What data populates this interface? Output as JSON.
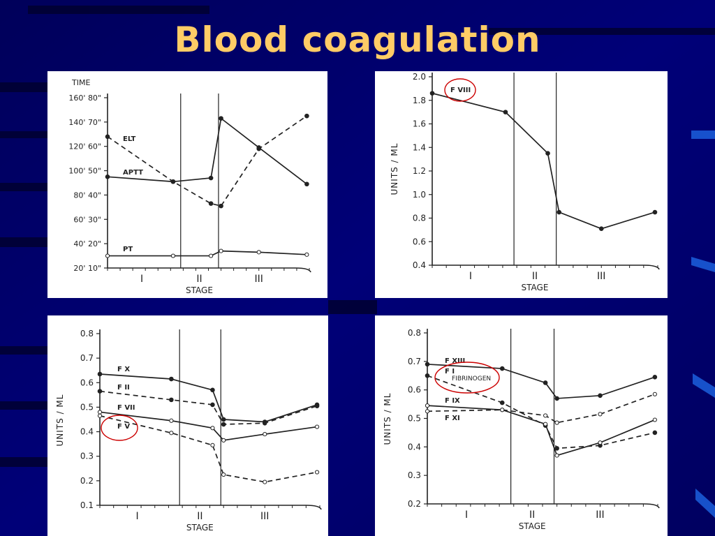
{
  "slide": {
    "title": "Blood coagulation"
  },
  "colors": {
    "background": "#000066",
    "title": "#ffcc66",
    "highlight": "#cc0000",
    "ink": "#222222"
  },
  "chart_data": [
    {
      "type": "line",
      "ylabel": "TIME",
      "xlabel": "STAGE",
      "stages": [
        "I",
        "II",
        "III"
      ],
      "ylim": [
        20,
        160
      ],
      "yticks": [
        20,
        40,
        60,
        80,
        100,
        120,
        140,
        160
      ],
      "ytick_labels": [
        "20' 10\"",
        "40' 20\"",
        "60' 30\"",
        "80' 40\"",
        "100' 50\"",
        "120' 60\"",
        "140' 70\"",
        "160' 80\""
      ],
      "series": [
        {
          "name": "ELT",
          "dashed": true,
          "marker": "filled",
          "points": [
            [
              0,
              128
            ],
            [
              1.3,
              91
            ],
            [
              2.05,
              73
            ],
            [
              2.25,
              71
            ],
            [
              3.0,
              118
            ],
            [
              3.95,
              145
            ]
          ]
        },
        {
          "name": "APTT",
          "dashed": false,
          "marker": "filled",
          "points": [
            [
              0,
              95
            ],
            [
              1.3,
              91
            ],
            [
              2.05,
              94
            ],
            [
              2.25,
              143
            ],
            [
              3.0,
              119
            ],
            [
              3.95,
              89
            ]
          ]
        },
        {
          "name": "PT",
          "dashed": false,
          "marker": "open",
          "points": [
            [
              0,
              30
            ],
            [
              1.3,
              30
            ],
            [
              2.05,
              30
            ],
            [
              2.25,
              34
            ],
            [
              3.0,
              33
            ],
            [
              3.95,
              31
            ]
          ]
        }
      ],
      "stage_boundaries": [
        1.45,
        2.2
      ]
    },
    {
      "type": "line",
      "ylabel": "UNITS / ML",
      "xlabel": "STAGE",
      "stages": [
        "I",
        "II",
        "III"
      ],
      "ylim": [
        0.4,
        2.0
      ],
      "yticks": [
        0.4,
        0.6,
        0.8,
        1.0,
        1.2,
        1.4,
        1.6,
        1.8,
        2.0
      ],
      "ytick_labels": [
        "0.4",
        "0.6",
        "0.8",
        "1.0",
        "1.2",
        "1.4",
        "1.6",
        "1.8",
        "2.0"
      ],
      "series": [
        {
          "name": "F VIII",
          "dashed": false,
          "marker": "filled",
          "points": [
            [
              0,
              1.86
            ],
            [
              1.3,
              1.7
            ],
            [
              2.05,
              1.35
            ],
            [
              2.25,
              0.85
            ],
            [
              3.0,
              0.71
            ],
            [
              3.95,
              0.85
            ]
          ]
        }
      ],
      "stage_boundaries": [
        1.45,
        2.2
      ],
      "highlighted": [
        "F VIII"
      ]
    },
    {
      "type": "line",
      "ylabel": "UNITS / ML",
      "xlabel": "STAGE",
      "stages": [
        "I",
        "II",
        "III"
      ],
      "ylim": [
        0.1,
        0.8
      ],
      "yticks": [
        0.1,
        0.2,
        0.3,
        0.4,
        0.5,
        0.6,
        0.7,
        0.8
      ],
      "ytick_labels": [
        "0.1",
        "0.2",
        "0.3",
        "0.4",
        "0.5",
        "0.6",
        "0.7",
        "0.8"
      ],
      "series": [
        {
          "name": "F X",
          "dashed": false,
          "marker": "filled",
          "points": [
            [
              0,
              0.635
            ],
            [
              1.3,
              0.615
            ],
            [
              2.05,
              0.57
            ],
            [
              2.25,
              0.45
            ],
            [
              3.0,
              0.44
            ],
            [
              3.95,
              0.51
            ]
          ]
        },
        {
          "name": "F II",
          "dashed": true,
          "marker": "filled",
          "points": [
            [
              0,
              0.565
            ],
            [
              1.3,
              0.53
            ],
            [
              2.05,
              0.51
            ],
            [
              2.25,
              0.43
            ],
            [
              3.0,
              0.435
            ],
            [
              3.95,
              0.505
            ]
          ]
        },
        {
          "name": "F VII",
          "dashed": false,
          "marker": "open",
          "points": [
            [
              0,
              0.48
            ],
            [
              1.3,
              0.445
            ],
            [
              2.05,
              0.415
            ],
            [
              2.25,
              0.365
            ],
            [
              3.0,
              0.39
            ],
            [
              3.95,
              0.42
            ]
          ]
        },
        {
          "name": "F V",
          "dashed": true,
          "marker": "open",
          "points": [
            [
              0,
              0.465
            ],
            [
              1.3,
              0.395
            ],
            [
              2.05,
              0.345
            ],
            [
              2.25,
              0.225
            ],
            [
              3.0,
              0.195
            ],
            [
              3.95,
              0.235
            ]
          ]
        }
      ],
      "stage_boundaries": [
        1.45,
        2.2
      ],
      "highlighted": [
        "F V"
      ]
    },
    {
      "type": "line",
      "ylabel": "UNITS / ML",
      "xlabel": "STAGE",
      "stages": [
        "I",
        "II",
        "III"
      ],
      "ylim": [
        0.2,
        0.8
      ],
      "yticks": [
        0.2,
        0.3,
        0.4,
        0.5,
        0.6,
        0.7,
        0.8
      ],
      "ytick_labels": [
        "0.2",
        "0.3",
        "0.4",
        "0.5",
        "0.6",
        "0.7",
        "0.8"
      ],
      "series": [
        {
          "name": "F XIII",
          "dashed": false,
          "marker": "filled",
          "points": [
            [
              0,
              0.69
            ],
            [
              1.3,
              0.675
            ],
            [
              2.05,
              0.625
            ],
            [
              2.25,
              0.57
            ],
            [
              3.0,
              0.58
            ],
            [
              3.95,
              0.645
            ]
          ]
        },
        {
          "name": "F I FIBRINOGEN",
          "dashed": true,
          "marker": "filled",
          "points": [
            [
              0,
              0.65
            ],
            [
              1.3,
              0.555
            ],
            [
              2.05,
              0.475
            ],
            [
              2.25,
              0.395
            ],
            [
              3.0,
              0.405
            ],
            [
              3.95,
              0.45
            ]
          ]
        },
        {
          "name": "F IX",
          "dashed": false,
          "marker": "open",
          "points": [
            [
              0,
              0.545
            ],
            [
              1.3,
              0.53
            ],
            [
              2.05,
              0.48
            ],
            [
              2.25,
              0.37
            ],
            [
              3.0,
              0.415
            ],
            [
              3.95,
              0.495
            ]
          ]
        },
        {
          "name": "F XI",
          "dashed": true,
          "marker": "open",
          "points": [
            [
              0,
              0.525
            ],
            [
              1.3,
              0.53
            ],
            [
              2.05,
              0.51
            ],
            [
              2.25,
              0.485
            ],
            [
              3.0,
              0.515
            ],
            [
              3.95,
              0.585
            ]
          ]
        }
      ],
      "stage_boundaries": [
        1.45,
        2.2
      ],
      "highlighted": [
        "F I FIBRINOGEN"
      ]
    }
  ]
}
